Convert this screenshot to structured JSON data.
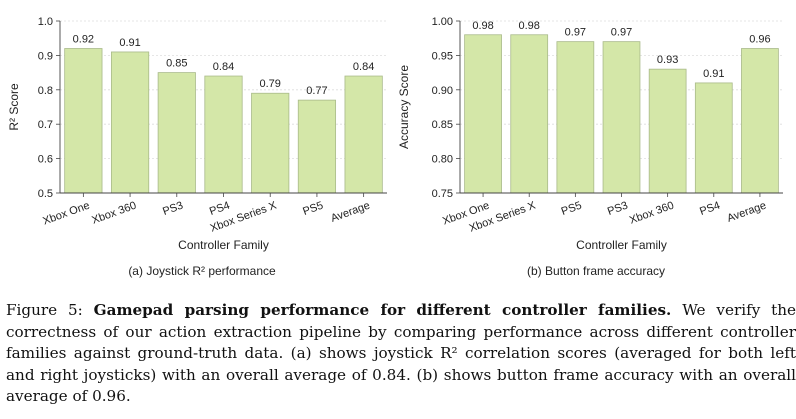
{
  "chart_data": [
    {
      "type": "bar",
      "subcaption": "(a) Joystick R² performance",
      "xlabel": "Controller Family",
      "ylabel": "R² Score",
      "categories": [
        "Xbox One",
        "Xbox 360",
        "PS3",
        "PS4",
        "Xbox Series X",
        "PS5",
        "Average"
      ],
      "values": [
        0.92,
        0.91,
        0.85,
        0.84,
        0.79,
        0.77,
        0.84
      ],
      "value_labels": [
        "0.92",
        "0.91",
        "0.85",
        "0.84",
        "0.79",
        "0.77",
        "0.84"
      ],
      "ylim": [
        0.5,
        1.0
      ],
      "yticks": [
        0.5,
        0.6,
        0.7,
        0.8,
        0.9,
        1.0
      ],
      "ytick_labels": [
        "0.5",
        "0.6",
        "0.7",
        "0.8",
        "0.9",
        "1.0"
      ],
      "grid": "horizontal dotted"
    },
    {
      "type": "bar",
      "subcaption": "(b) Button frame accuracy",
      "xlabel": "Controller Family",
      "ylabel": "Accuracy Score",
      "categories": [
        "Xbox One",
        "Xbox Series X",
        "PS5",
        "PS3",
        "Xbox 360",
        "PS4",
        "Average"
      ],
      "values": [
        0.98,
        0.98,
        0.97,
        0.97,
        0.93,
        0.91,
        0.96
      ],
      "value_labels": [
        "0.98",
        "0.98",
        "0.97",
        "0.97",
        "0.93",
        "0.91",
        "0.96"
      ],
      "ylim": [
        0.75,
        1.0
      ],
      "yticks": [
        0.75,
        0.8,
        0.85,
        0.9,
        0.95,
        1.0
      ],
      "ytick_labels": [
        "0.75",
        "0.80",
        "0.85",
        "0.90",
        "0.95",
        "1.00"
      ],
      "grid": "horizontal dotted"
    }
  ],
  "colors": {
    "bar_fill": "#d4e7a8",
    "bar_edge": "#a9ba8a",
    "axis": "#444444",
    "grid": "#dddddd"
  },
  "caption": {
    "label": "Figure 5:",
    "bold_title": "Gamepad parsing performance for different controller families.",
    "body": "We verify the correctness of our action extraction pipeline by comparing performance across different controller families against ground-truth data. (a) shows joystick R² correlation scores (averaged for both left and right joysticks) with an overall average of 0.84. (b) shows button frame accuracy with an overall average of 0.96."
  }
}
